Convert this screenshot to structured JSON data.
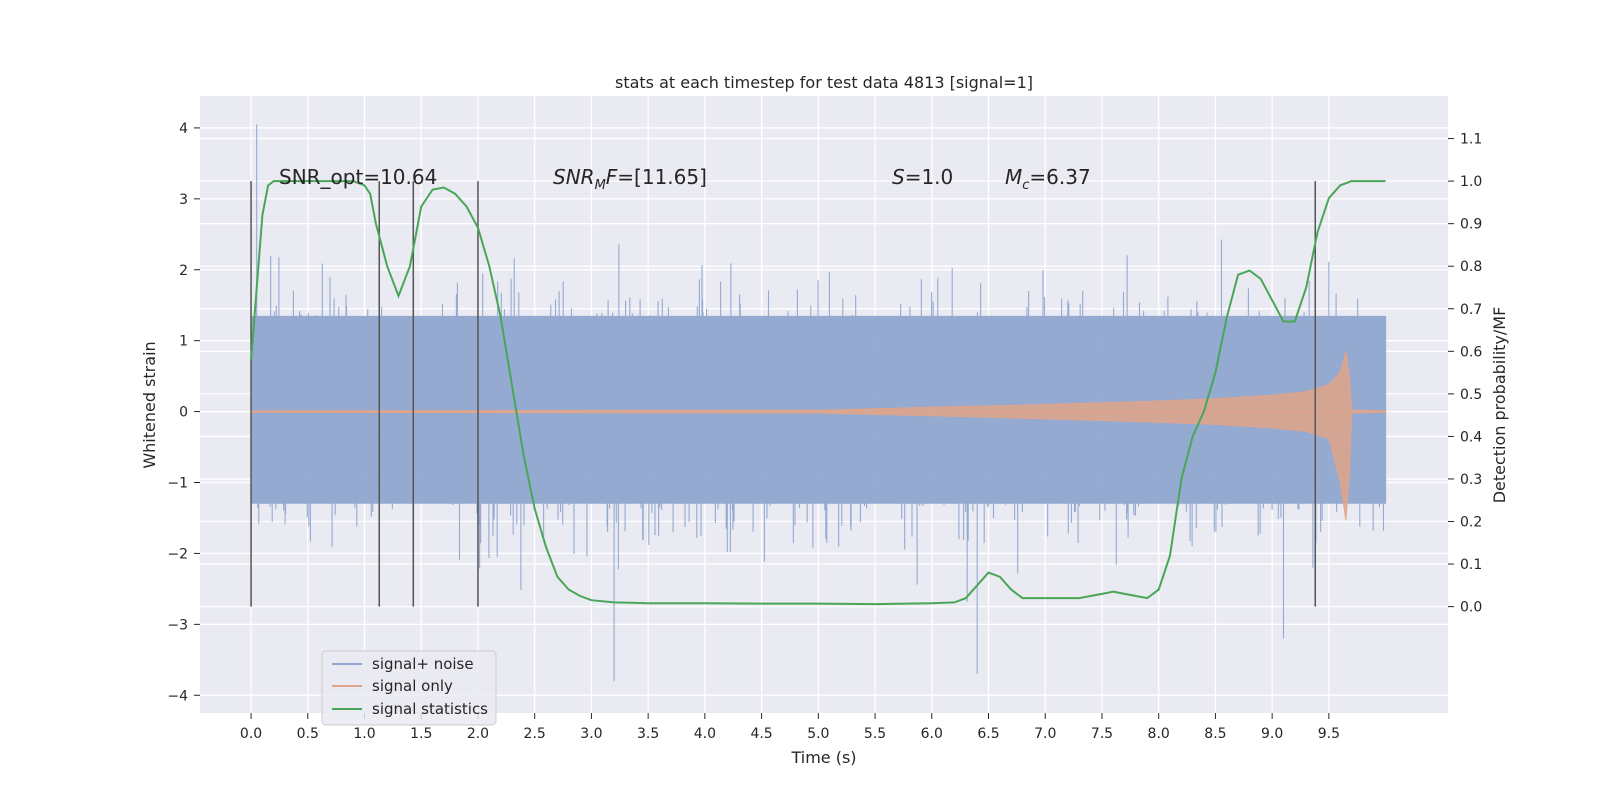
{
  "chart_data": {
    "type": "line",
    "title": "stats at each timestep for test data 4813 [signal=1]",
    "xlabel": "Time (s)",
    "ylabel_left": "Whitened strain",
    "ylabel_right": "Detection probability/MF",
    "xlim": [
      -0.45,
      10.55
    ],
    "ylim_left": [
      -4.25,
      4.45
    ],
    "ylim_right": [
      -0.25,
      1.2
    ],
    "x_ticks": [
      "0.0",
      "0.5",
      "1.0",
      "1.5",
      "2.0",
      "2.5",
      "3.0",
      "3.5",
      "4.0",
      "4.5",
      "5.0",
      "5.5",
      "6.0",
      "6.5",
      "7.0",
      "7.5",
      "8.0",
      "8.5",
      "9.0",
      "9.5"
    ],
    "y_left_ticks": [
      "4",
      "3",
      "2",
      "1",
      "0",
      "−1",
      "−2",
      "−3",
      "−4"
    ],
    "y_right_ticks": [
      "1.1",
      "1.0",
      "0.9",
      "0.8",
      "0.7",
      "0.6",
      "0.5",
      "0.4",
      "0.3",
      "0.2",
      "0.1",
      "0.0"
    ],
    "grid": true,
    "legend_position": "lower-left",
    "annotations": {
      "snr_opt": "SNR_opt=10.64",
      "snr_mf": "SNR_MF=[11.65]",
      "s": "S=1.0",
      "mc": "M_c=6.37"
    },
    "vertical_lines_x": [
      0.0,
      1.13,
      1.43,
      2.0,
      9.38
    ],
    "series": [
      {
        "name": "signal+ noise",
        "color": "#8fa6cf",
        "description_values": {
          "x_range": [
            0.0,
            10.0
          ],
          "typical_range": [
            -1.3,
            1.4
          ],
          "peaks": [
            [
              0.05,
              4.05
            ],
            [
              3.2,
              -3.8
            ],
            [
              6.4,
              -3.7
            ],
            [
              9.1,
              -3.2
            ]
          ]
        }
      },
      {
        "name": "signal only",
        "color": "#e0a48a",
        "x": [
          0.0,
          5.0,
          6.0,
          7.0,
          8.0,
          8.5,
          9.0,
          9.3,
          9.5,
          9.6,
          9.65,
          9.68,
          9.7,
          10.0
        ],
        "envelope": [
          0.01,
          0.02,
          0.06,
          0.1,
          0.15,
          0.18,
          0.23,
          0.28,
          0.38,
          0.55,
          0.85,
          0.5,
          0.02,
          0.01
        ]
      },
      {
        "name": "signal statistics",
        "color": "#4aa657",
        "axis": "right",
        "x": [
          0.0,
          0.1,
          0.15,
          0.2,
          0.3,
          0.5,
          0.9,
          1.0,
          1.05,
          1.1,
          1.2,
          1.3,
          1.4,
          1.45,
          1.5,
          1.6,
          1.7,
          1.8,
          1.9,
          2.0,
          2.1,
          2.2,
          2.3,
          2.4,
          2.5,
          2.6,
          2.7,
          2.8,
          2.9,
          3.0,
          3.2,
          3.5,
          4.0,
          4.5,
          5.0,
          5.5,
          6.0,
          6.2,
          6.3,
          6.4,
          6.5,
          6.6,
          6.7,
          6.8,
          7.0,
          7.3,
          7.4,
          7.5,
          7.6,
          7.7,
          7.8,
          7.9,
          8.0,
          8.1,
          8.2,
          8.3,
          8.4,
          8.5,
          8.6,
          8.7,
          8.8,
          8.9,
          9.0,
          9.1,
          9.2,
          9.3,
          9.4,
          9.5,
          9.6,
          9.7,
          9.8,
          10.0
        ],
        "y": [
          0.58,
          0.92,
          0.99,
          1.0,
          1.0,
          1.0,
          1.0,
          0.99,
          0.97,
          0.9,
          0.8,
          0.73,
          0.8,
          0.87,
          0.94,
          0.98,
          0.985,
          0.97,
          0.94,
          0.89,
          0.8,
          0.68,
          0.52,
          0.36,
          0.23,
          0.14,
          0.07,
          0.04,
          0.025,
          0.015,
          0.01,
          0.008,
          0.008,
          0.007,
          0.007,
          0.006,
          0.008,
          0.01,
          0.02,
          0.05,
          0.08,
          0.07,
          0.04,
          0.02,
          0.02,
          0.02,
          0.025,
          0.03,
          0.035,
          0.03,
          0.025,
          0.02,
          0.04,
          0.12,
          0.3,
          0.4,
          0.46,
          0.55,
          0.68,
          0.78,
          0.79,
          0.77,
          0.72,
          0.67,
          0.67,
          0.75,
          0.88,
          0.96,
          0.99,
          1.0,
          1.0,
          1.0
        ]
      }
    ],
    "legend": {
      "items": [
        "signal+ noise",
        "signal only",
        "signal statistics"
      ]
    }
  }
}
